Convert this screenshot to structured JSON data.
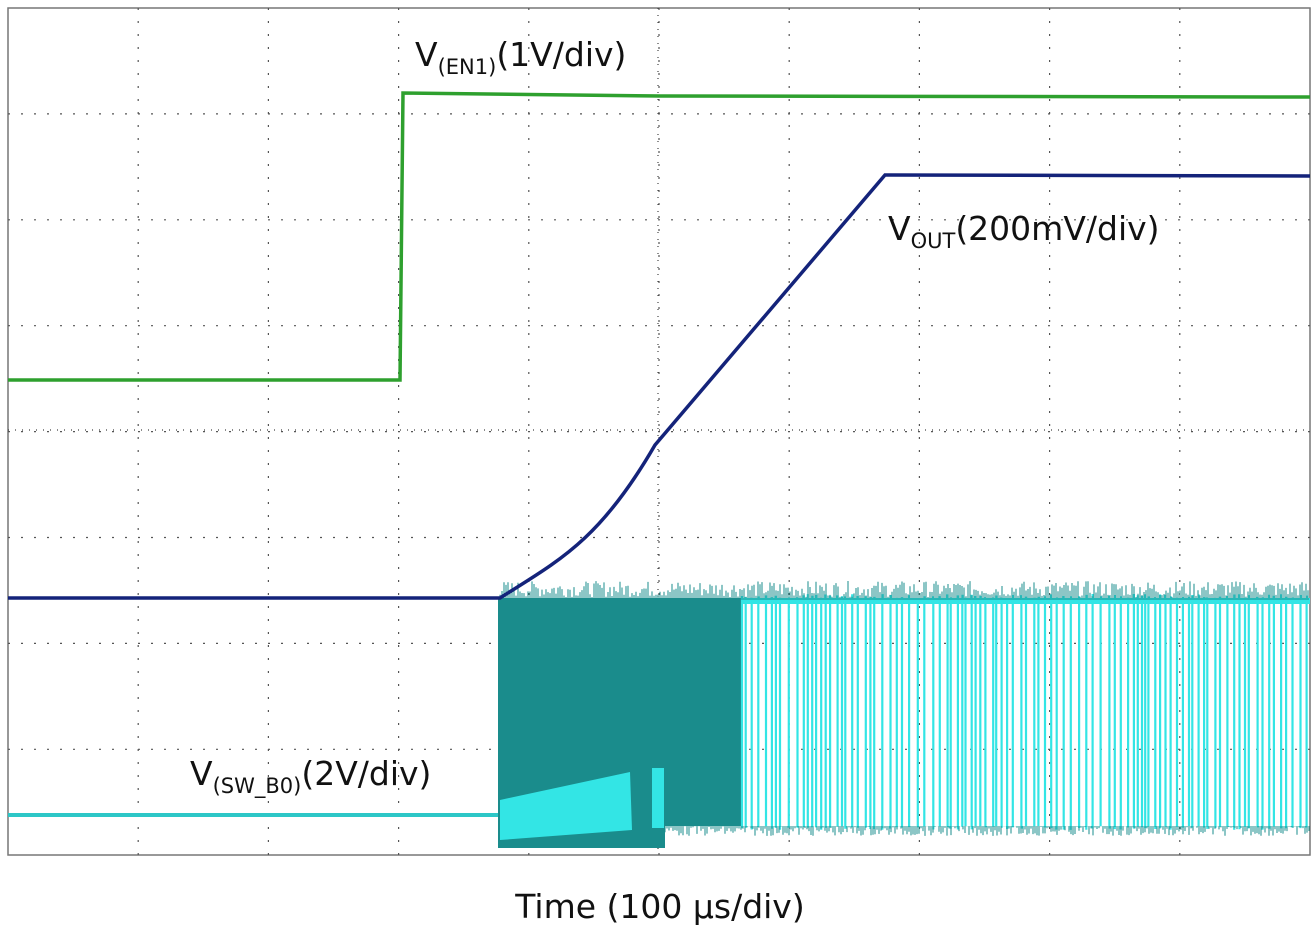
{
  "traces": [
    {
      "symbol": "V",
      "subscript": "(EN1)",
      "scale": "(1V/div)"
    },
    {
      "symbol": "V",
      "subscript": "OUT",
      "scale": "(200mV/div)"
    },
    {
      "symbol": "V",
      "subscript": "(SW_B0)",
      "scale": "(2V/div)"
    }
  ],
  "x_axis_label": "Time (100 µs/div)"
}
